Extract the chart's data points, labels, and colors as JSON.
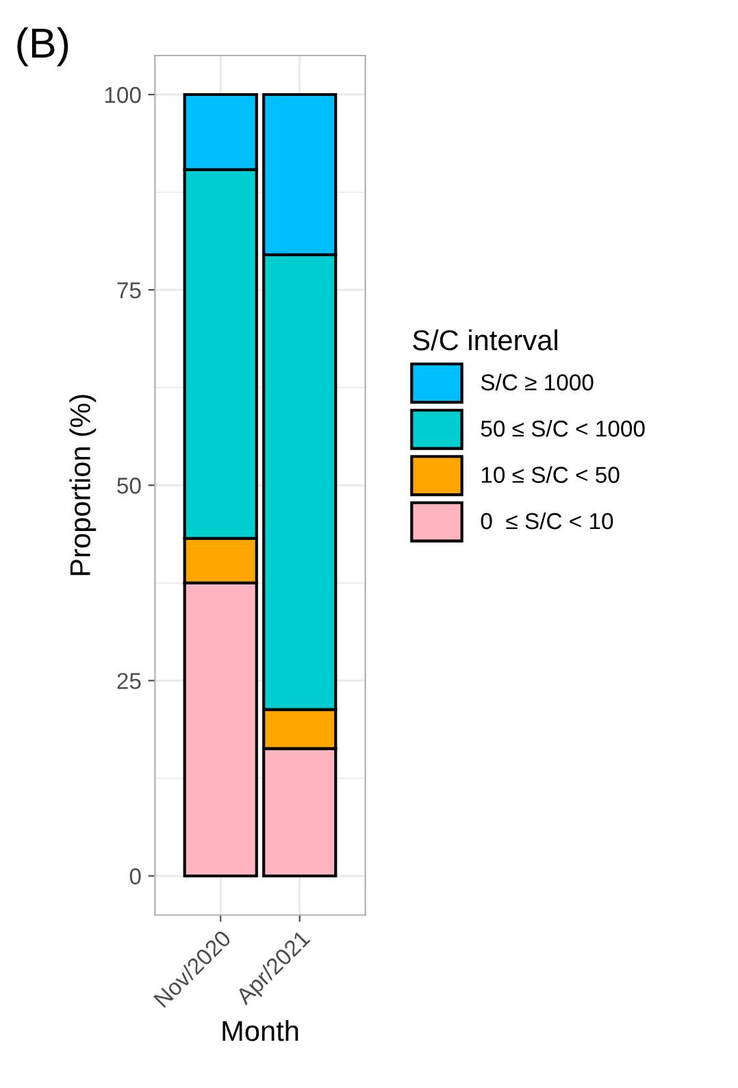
{
  "chart_data": {
    "type": "bar",
    "stacked": true,
    "xlabel": "Month",
    "ylabel": "Proportion (%)",
    "legend_title": "S/C interval",
    "categories": [
      "Nov/2020",
      "Apr/2021"
    ],
    "series": [
      {
        "name": "0  ≤ S/C < 10",
        "color": "#ffb6c1",
        "values": [
          37.5,
          16.3
        ]
      },
      {
        "name": "10 ≤ S/C < 50",
        "color": "#ffa500",
        "values": [
          5.7,
          5.0
        ]
      },
      {
        "name": "50 ≤ S/C < 1000",
        "color": "#00ced1",
        "values": [
          47.2,
          58.2
        ]
      },
      {
        "name": "S/C ≥ 1000",
        "color": "#00bfff",
        "values": [
          9.6,
          20.5
        ]
      }
    ],
    "ylim": [
      -5,
      105
    ],
    "yticks": [
      0,
      25,
      50,
      75,
      100
    ],
    "grid": true,
    "legend": "right",
    "annotations": [
      "(B)"
    ]
  }
}
